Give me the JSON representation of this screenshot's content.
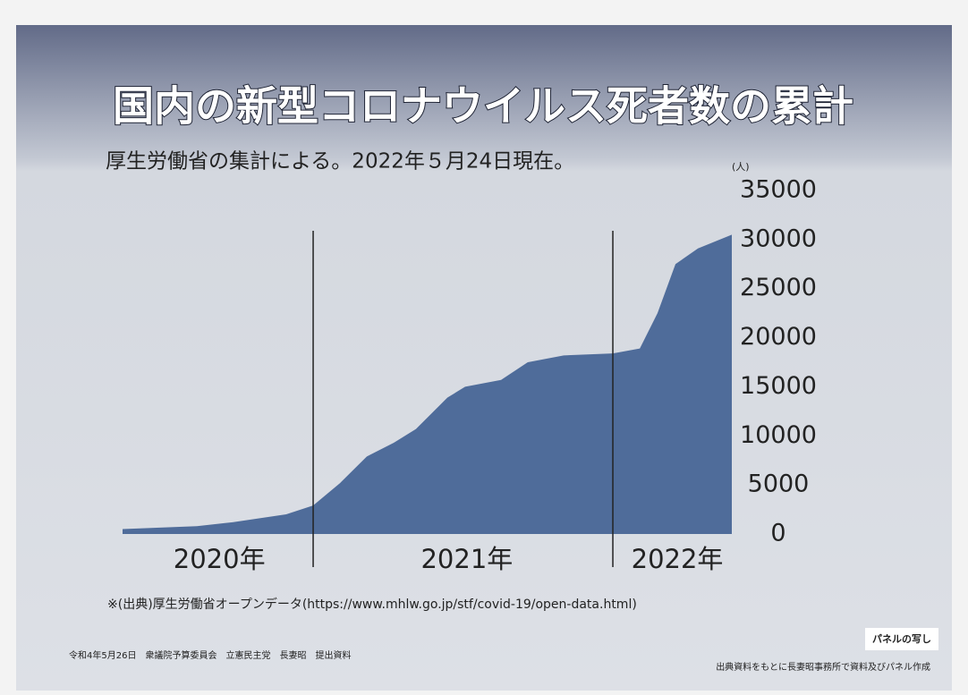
{
  "chart_data": {
    "type": "area",
    "title": "国内の新型コロナウイルス死者数の累計",
    "subtitle": "厚生労働省の集計による。2022年５月24日現在。",
    "y_unit": "(人)",
    "x": [
      2020.364,
      2020.612,
      2020.731,
      2020.91,
      2021.0,
      2021.09,
      2021.179,
      2021.269,
      2021.343,
      2021.448,
      2021.507,
      2021.627,
      2021.716,
      2021.836,
      2022.0,
      2022.09,
      2022.149,
      2022.209,
      2022.284,
      2022.397
    ],
    "values": [
      500,
      800,
      1200,
      2000,
      2900,
      5200,
      7900,
      9300,
      10700,
      13900,
      15000,
      15700,
      17500,
      18200,
      18400,
      18900,
      22500,
      27500,
      29100,
      30500
    ],
    "color": "#4f6c9a",
    "xlim": [
      2020.364,
      2022.397
    ],
    "xticks": [
      {
        "value": 2020.687,
        "label": "2020年"
      },
      {
        "value": 2021.513,
        "label": "2021年"
      },
      {
        "value": 2022.215,
        "label": "2022年"
      }
    ],
    "year_dividers": [
      2021,
      2022
    ],
    "ylim": [
      0,
      35000
    ],
    "yticks": [
      0,
      5000,
      10000,
      15000,
      20000,
      25000,
      30000,
      35000
    ],
    "grid": false,
    "source": "※(出典)厚生労働省オープンデータ(https://www.mhlw.go.jp/stf/covid-19/open-data.html)"
  },
  "footer": {
    "left": "令和4年5月26日　衆議院予算委員会　立憲民主党　長妻昭　提出資料",
    "badge": "パネルの写し",
    "right": "出典資料をもとに長妻昭事務所で資料及びパネル作成"
  }
}
